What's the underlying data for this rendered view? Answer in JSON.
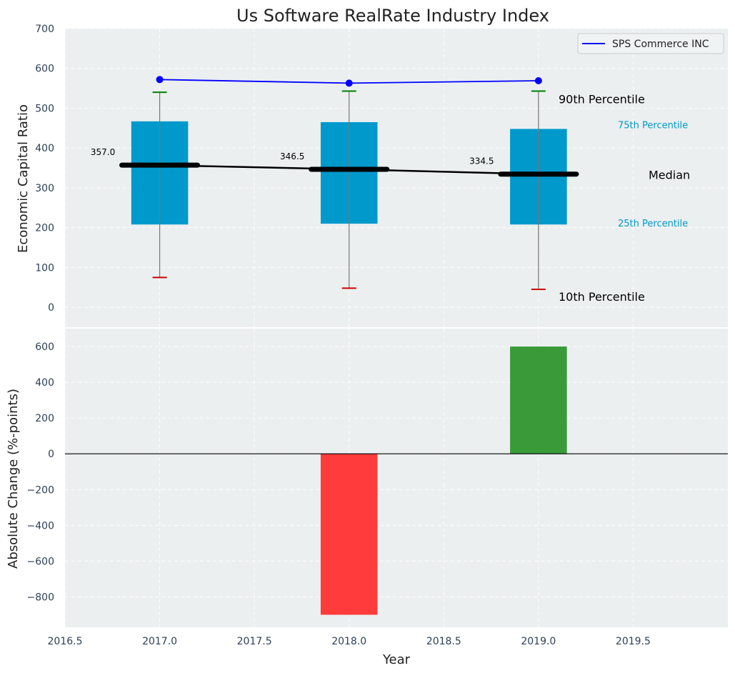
{
  "chart_data": [
    {
      "type": "box",
      "title": "Us Software RealRate Industry Index",
      "ylabel": "Economic Capital Ratio",
      "xlim": [
        2016.5,
        2020.0
      ],
      "ylim": [
        -50,
        700
      ],
      "yticks": [
        0,
        100,
        200,
        300,
        400,
        500,
        600,
        700
      ],
      "grid": true,
      "legend_position": "top-right",
      "years": [
        2017,
        2018,
        2019
      ],
      "p10": [
        75,
        48,
        45
      ],
      "p25": [
        208,
        210,
        208
      ],
      "median": [
        357.0,
        346.5,
        334.5
      ],
      "median_labels": [
        "357.0",
        "346.5",
        "334.5"
      ],
      "p75": [
        467,
        465,
        448
      ],
      "p90": [
        540,
        543,
        543
      ],
      "company_series": {
        "name": "SPS Commerce INC",
        "values": [
          572,
          563,
          569
        ],
        "color": "#0000ff"
      },
      "annotations": {
        "p90": "90th Percentile",
        "p75": "75th Percentile",
        "median": "Median",
        "p25": "25th Percentile",
        "p10": "10th Percentile"
      },
      "colors": {
        "box": "#0099cc",
        "median": "#000000",
        "whisker_top": "#008000",
        "whisker_bottom": "#d00000",
        "background": "#ebeff0"
      }
    },
    {
      "type": "bar",
      "xlabel": "Year",
      "ylabel": "Absolute Change (%-points)",
      "xticks": [
        2016.5,
        2017.0,
        2017.5,
        2018.0,
        2018.5,
        2019.0,
        2019.5
      ],
      "xtick_labels": [
        "2016.5",
        "2017.0",
        "2017.5",
        "2018.0",
        "2018.5",
        "2019.0",
        "2019.5"
      ],
      "ylim": [
        -970,
        700
      ],
      "yticks": [
        -800,
        -600,
        -400,
        -200,
        0,
        200,
        400,
        600
      ],
      "ytick_labels": [
        "−800",
        "−600",
        "−400",
        "−200",
        "0",
        "200",
        "400",
        "600"
      ],
      "years": [
        2018,
        2019
      ],
      "values": [
        -900,
        600
      ],
      "colors": {
        "negative": "#ff3b3b",
        "positive": "#3a9a3a"
      }
    }
  ]
}
